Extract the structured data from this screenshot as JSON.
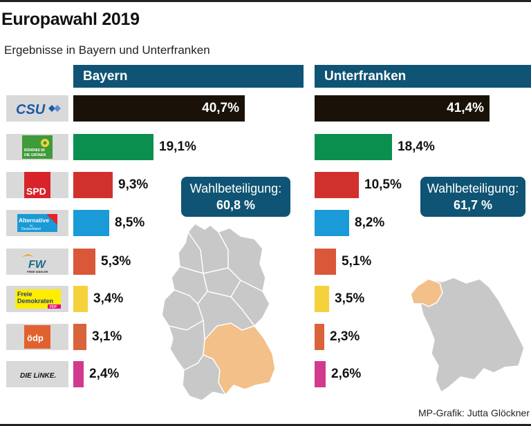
{
  "title": "Europawahl 2019",
  "subtitle": "Ergebnisse in Bayern und Unterfranken",
  "credit": "MP-Grafik: Jutta Glöckner",
  "parties": [
    {
      "logo": "CSU",
      "icon": "csu-logo-icon",
      "color": "#1a1208"
    },
    {
      "logo": "BÜNDNIS 90 DIE GRÜNEN",
      "icon": "gruene-logo-icon",
      "color": "#0b8f4f"
    },
    {
      "logo": "SPD",
      "icon": "spd-logo-icon",
      "color": "#d0312d"
    },
    {
      "logo": "Alternative für Deutschland",
      "icon": "afd-logo-icon",
      "color": "#1a9ad6"
    },
    {
      "logo": "FW FREIE WÄHLER",
      "icon": "fw-logo-icon",
      "color": "#d9583a"
    },
    {
      "logo": "Freie Demokraten FDP",
      "icon": "fdp-logo-icon",
      "color": "#f5d23c"
    },
    {
      "logo": "ödp",
      "icon": "oedp-logo-icon",
      "color": "#d9633a"
    },
    {
      "logo": "DIE LINKE.",
      "icon": "linke-logo-icon",
      "color": "#d23a8e"
    }
  ],
  "chart_data": [
    {
      "type": "bar",
      "title": "Bayern",
      "categories": [
        "CSU",
        "BÜNDNIS 90 DIE GRÜNEN",
        "SPD",
        "Alternative für Deutschland",
        "FW FREIE WÄHLER",
        "Freie Demokraten FDP",
        "ödp",
        "DIE LINKE."
      ],
      "values": [
        40.7,
        19.1,
        9.3,
        8.5,
        5.3,
        3.4,
        3.1,
        2.4
      ],
      "labels": [
        "40,7%",
        "19,1%",
        "9,3%",
        "8,5%",
        "5,3%",
        "3,4%",
        "3,1%",
        "2,4%"
      ],
      "turnout_label": "Wahlbeteiligung:",
      "turnout_value": "60,8 %"
    },
    {
      "type": "bar",
      "title": "Unterfranken",
      "categories": [
        "CSU",
        "BÜNDNIS 90 DIE GRÜNEN",
        "SPD",
        "Alternative für Deutschland",
        "FW FREIE WÄHLER",
        "Freie Demokraten FDP",
        "ödp",
        "DIE LINKE."
      ],
      "values": [
        41.4,
        18.4,
        10.5,
        8.2,
        5.1,
        3.5,
        2.3,
        2.6
      ],
      "labels": [
        "41,4%",
        "18,4%",
        "10,5%",
        "8,2%",
        "5,1%",
        "3,5%",
        "2,3%",
        "2,6%"
      ],
      "turnout_label": "Wahlbeteiligung:",
      "turnout_value": "61,7 %"
    }
  ],
  "map_colors": {
    "highlight": "#f3c08a",
    "base": "#c8c8c8",
    "border": "#ffffff"
  }
}
